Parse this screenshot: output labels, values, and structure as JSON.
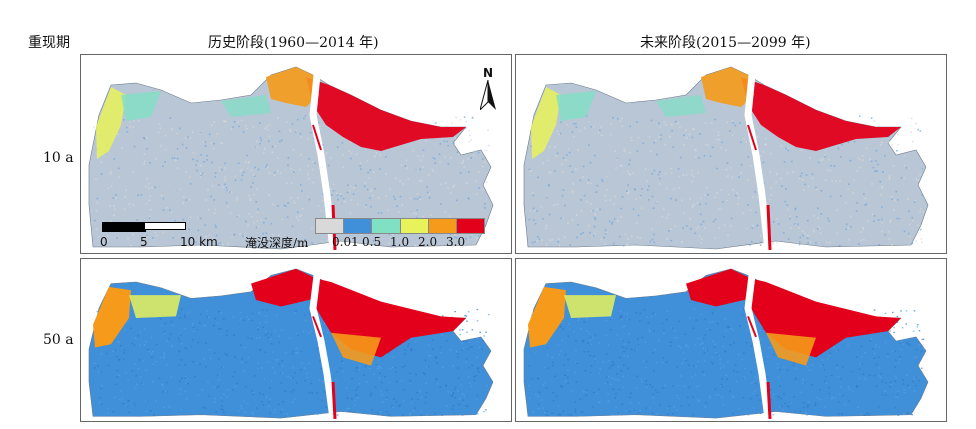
{
  "header": {
    "period_label": "重现期",
    "col_hist": "历史阶段(1960—2014 年)",
    "col_future": "未来阶段(2015—2099 年)"
  },
  "rows": [
    {
      "label": "10 a"
    },
    {
      "label": "50 a"
    }
  ],
  "scale_bar": {
    "t0": "0",
    "t5": "5",
    "t10": "10 km"
  },
  "north_arrow": {
    "label": "N"
  },
  "legend": {
    "title": "淹没深度/m",
    "ticks": [
      "0.01",
      "0.5",
      "1.0",
      "2.0",
      "3.0"
    ],
    "colors": [
      "#d9d9d9",
      "#3f8fd9",
      "#7fe0c4",
      "#e8f25a",
      "#f59a1a",
      "#e3001b"
    ]
  },
  "panels": [
    {
      "id": "hist-10a",
      "severity": "low"
    },
    {
      "id": "future-10a",
      "severity": "low"
    },
    {
      "id": "hist-50a",
      "severity": "high"
    },
    {
      "id": "future-50a",
      "severity": "high"
    }
  ]
}
